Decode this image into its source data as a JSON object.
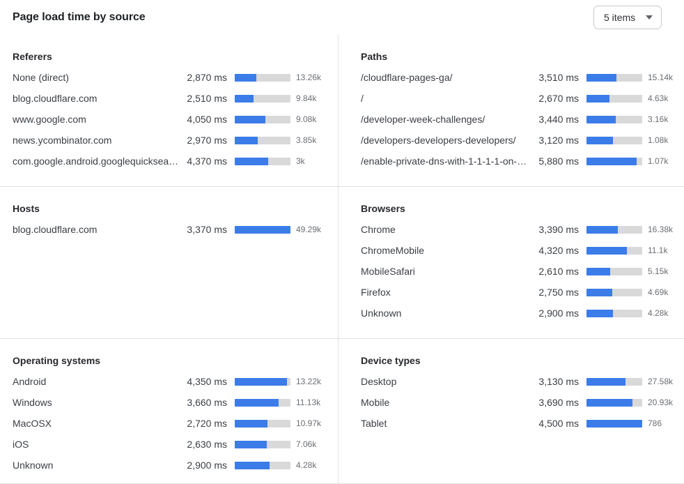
{
  "header": {
    "title": "Page load time by source",
    "dropdown": {
      "value": "5 items"
    }
  },
  "colors": {
    "bar_fill": "#3b7ce8",
    "bar_track": "#d9d9d9",
    "divider": "#e1e1e1",
    "count_text": "#6b6e73",
    "primary_text": "#3a3e44"
  },
  "panels": [
    {
      "title": "Referers",
      "rows": [
        {
          "label": "None (direct)",
          "ms": "2,870 ms",
          "count": "13.26k",
          "bar_pct": 39
        },
        {
          "label": "blog.cloudflare.com",
          "ms": "2,510 ms",
          "count": "9.84k",
          "bar_pct": 34
        },
        {
          "label": "www.google.com",
          "ms": "4,050 ms",
          "count": "9.08k",
          "bar_pct": 55
        },
        {
          "label": "news.ycombinator.com",
          "ms": "2,970 ms",
          "count": "3.85k",
          "bar_pct": 41
        },
        {
          "label": "com.google.android.googlequicksearc…",
          "ms": "4,370 ms",
          "count": "3k",
          "bar_pct": 60
        }
      ]
    },
    {
      "title": "Paths",
      "rows": [
        {
          "label": "/cloudflare-pages-ga/",
          "ms": "3,510 ms",
          "count": "15.14k",
          "bar_pct": 54
        },
        {
          "label": "/",
          "ms": "2,670 ms",
          "count": "4.63k",
          "bar_pct": 41
        },
        {
          "label": "/developer-week-challenges/",
          "ms": "3,440 ms",
          "count": "3.16k",
          "bar_pct": 53
        },
        {
          "label": "/developers-developers-developers/",
          "ms": "3,120 ms",
          "count": "1.08k",
          "bar_pct": 48
        },
        {
          "label": "/enable-private-dns-with-1-1-1-1-on-…",
          "ms": "5,880 ms",
          "count": "1.07k",
          "bar_pct": 90
        }
      ]
    },
    {
      "title": "Hosts",
      "rows": [
        {
          "label": "blog.cloudflare.com",
          "ms": "3,370 ms",
          "count": "49.29k",
          "bar_pct": 100
        }
      ]
    },
    {
      "title": "Browsers",
      "rows": [
        {
          "label": "Chrome",
          "ms": "3,390 ms",
          "count": "16.38k",
          "bar_pct": 56
        },
        {
          "label": "ChromeMobile",
          "ms": "4,320 ms",
          "count": "11.1k",
          "bar_pct": 72
        },
        {
          "label": "MobileSafari",
          "ms": "2,610 ms",
          "count": "5.15k",
          "bar_pct": 43
        },
        {
          "label": "Firefox",
          "ms": "2,750 ms",
          "count": "4.69k",
          "bar_pct": 46
        },
        {
          "label": "Unknown",
          "ms": "2,900 ms",
          "count": "4.28k",
          "bar_pct": 48
        }
      ]
    },
    {
      "title": "Operating systems",
      "rows": [
        {
          "label": "Android",
          "ms": "4,350 ms",
          "count": "13.22k",
          "bar_pct": 94
        },
        {
          "label": "Windows",
          "ms": "3,660 ms",
          "count": "11.13k",
          "bar_pct": 79
        },
        {
          "label": "MacOSX",
          "ms": "2,720 ms",
          "count": "10.97k",
          "bar_pct": 59
        },
        {
          "label": "iOS",
          "ms": "2,630 ms",
          "count": "7.06k",
          "bar_pct": 57
        },
        {
          "label": "Unknown",
          "ms": "2,900 ms",
          "count": "4.28k",
          "bar_pct": 63
        }
      ]
    },
    {
      "title": "Device types",
      "rows": [
        {
          "label": "Desktop",
          "ms": "3,130 ms",
          "count": "27.58k",
          "bar_pct": 70
        },
        {
          "label": "Mobile",
          "ms": "3,690 ms",
          "count": "20.93k",
          "bar_pct": 82
        },
        {
          "label": "Tablet",
          "ms": "4,500 ms",
          "count": "786",
          "bar_pct": 100
        }
      ]
    }
  ],
  "chart_data": [
    {
      "type": "bar",
      "title": "Referers",
      "unit": "ms",
      "categories": [
        "None (direct)",
        "blog.cloudflare.com",
        "www.google.com",
        "news.ycombinator.com",
        "com.google.android.googlequicksearc…"
      ],
      "values": [
        2870,
        2510,
        4050,
        2970,
        4370
      ],
      "counts": [
        13260,
        9840,
        9080,
        3850,
        3000
      ]
    },
    {
      "type": "bar",
      "title": "Paths",
      "unit": "ms",
      "categories": [
        "/cloudflare-pages-ga/",
        "/",
        "/developer-week-challenges/",
        "/developers-developers-developers/",
        "/enable-private-dns-with-1-1-1-1-on-…"
      ],
      "values": [
        3510,
        2670,
        3440,
        3120,
        5880
      ],
      "counts": [
        15140,
        4630,
        3160,
        1080,
        1070
      ]
    },
    {
      "type": "bar",
      "title": "Hosts",
      "unit": "ms",
      "categories": [
        "blog.cloudflare.com"
      ],
      "values": [
        3370
      ],
      "counts": [
        49290
      ]
    },
    {
      "type": "bar",
      "title": "Browsers",
      "unit": "ms",
      "categories": [
        "Chrome",
        "ChromeMobile",
        "MobileSafari",
        "Firefox",
        "Unknown"
      ],
      "values": [
        3390,
        4320,
        2610,
        2750,
        2900
      ],
      "counts": [
        16380,
        11100,
        5150,
        4690,
        4280
      ]
    },
    {
      "type": "bar",
      "title": "Operating systems",
      "unit": "ms",
      "categories": [
        "Android",
        "Windows",
        "MacOSX",
        "iOS",
        "Unknown"
      ],
      "values": [
        4350,
        3660,
        2720,
        2630,
        2900
      ],
      "counts": [
        13220,
        11130,
        10970,
        7060,
        4280
      ]
    },
    {
      "type": "bar",
      "title": "Device types",
      "unit": "ms",
      "categories": [
        "Desktop",
        "Mobile",
        "Tablet"
      ],
      "values": [
        3130,
        3690,
        4500
      ],
      "counts": [
        27580,
        20930,
        786
      ]
    }
  ]
}
